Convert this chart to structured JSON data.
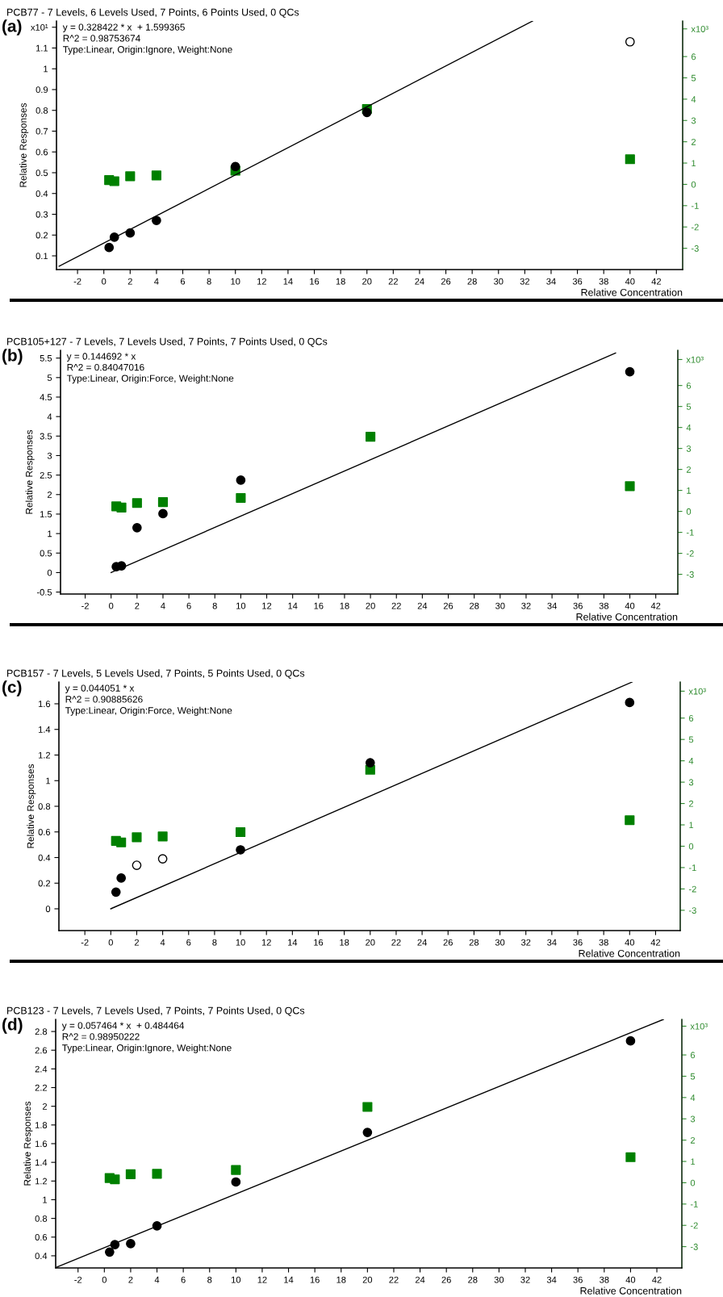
{
  "chart_data": [
    {
      "type": "scatter",
      "title": "PCB77 - 7 Levels, 6 Levels Used, 7 Points, 6 Points Used, 0 QCs",
      "xlabel": "Relative Concentration",
      "ylabel": "Relative Responses",
      "annotations": [
        "(a)",
        "y = 0.328422 * x  + 1.599365",
        "R^2 = 0.98753674",
        "Type:Linear, Origin:Ignore, Weight:None"
      ],
      "x": [
        0.4,
        0.8,
        2,
        4,
        10,
        20,
        40
      ],
      "marker": "circle",
      "grid": false,
      "xlim": [
        -3.6,
        44
      ],
      "xticks": [
        -2,
        0,
        2,
        4,
        6,
        8,
        10,
        12,
        14,
        16,
        18,
        20,
        22,
        24,
        26,
        28,
        30,
        32,
        34,
        36,
        38,
        40,
        42
      ],
      "ylim": [
        0.034,
        1.23
      ],
      "yticks": [
        0.1,
        0.2,
        0.3,
        0.4,
        0.5,
        0.6,
        0.7,
        0.8,
        0.9,
        1,
        1.1,
        {
          "value": 1.2,
          "label": "x10¹"
        }
      ],
      "y2lim": [
        -4.0,
        7.67
      ],
      "y2ticks": [
        -3,
        -2,
        -1,
        0,
        1,
        2,
        3,
        4,
        5,
        6,
        {
          "value": 7.3,
          "label": "x10³"
        }
      ],
      "series": [
        {
          "axis": "y2",
          "marker": "square",
          "color": "#008000",
          "values": [
            0.2,
            0.15,
            0.38,
            0.42,
            0.64,
            3.54,
            1.18
          ]
        },
        {
          "color": "#000000",
          "values": [
            0.14,
            0.19,
            0.21,
            0.27,
            0.53,
            0.79,
            null
          ]
        },
        {
          "color": "#ffffff",
          "values": [
            null,
            null,
            null,
            null,
            null,
            null,
            1.13
          ]
        },
        {
          "type": "line",
          "marker": "none",
          "color": "#000000",
          "x": [
            -3.4,
            32.6
          ],
          "values": [
            0.05,
            1.23
          ]
        }
      ]
    },
    {
      "type": "scatter",
      "title": "PCB105+127 - 7 Levels, 7 Levels Used, 7 Points, 7 Points Used, 0 QCs",
      "xlabel": "Relative Concentration",
      "ylabel": "Relative Responses",
      "annotations": [
        "(b)",
        "y = 0.144692 * x",
        "R^2 = 0.84047016",
        "Type:Linear, Origin:Force, Weight:None"
      ],
      "x": [
        0.4,
        0.8,
        2,
        4,
        10,
        20,
        40
      ],
      "marker": "circle",
      "grid": false,
      "xlim": [
        -3.9,
        43.7
      ],
      "xticks": [
        -2,
        0,
        2,
        4,
        6,
        8,
        10,
        12,
        14,
        16,
        18,
        20,
        22,
        24,
        26,
        28,
        30,
        32,
        34,
        36,
        38,
        40,
        42
      ],
      "ylim": [
        -0.55,
        5.7
      ],
      "yticks": [
        -0.5,
        0,
        0.5,
        1,
        1.5,
        2,
        2.5,
        3,
        3.5,
        4,
        4.5,
        5,
        5.5
      ],
      "y2lim": [
        -3.94,
        7.68
      ],
      "y2ticks": [
        -3,
        -2,
        -1,
        0,
        1,
        2,
        3,
        4,
        5,
        6,
        {
          "value": 7.24,
          "label": "x10³"
        }
      ],
      "series": [
        {
          "axis": "y2",
          "marker": "square",
          "color": "#008000",
          "values": [
            0.24,
            0.18,
            0.4,
            0.44,
            0.64,
            3.56,
            1.2
          ]
        },
        {
          "color": "#000000",
          "values": [
            0.15,
            0.17,
            1.15,
            1.51,
            2.37,
            null,
            5.15
          ]
        },
        {
          "type": "line",
          "marker": "none",
          "color": "#000000",
          "x": [
            0,
            38.9
          ],
          "values": [
            0,
            5.63
          ]
        }
      ]
    },
    {
      "type": "scatter",
      "title": "PCB157 - 7 Levels, 5 Levels Used, 7 Points, 5 Points Used, 0 QCs",
      "xlabel": "Relative Concentration",
      "ylabel": "Relative Responses",
      "annotations": [
        "(c)",
        "y = 0.044051 * x",
        "R^2 = 0.90885626",
        "Type:Linear, Origin:Force, Weight:None"
      ],
      "x": [
        0.4,
        0.8,
        2,
        4,
        10,
        20,
        40
      ],
      "marker": "circle",
      "grid": false,
      "xlim": [
        -4.0,
        43.9
      ],
      "xticks": [
        -2,
        0,
        2,
        4,
        6,
        8,
        10,
        12,
        14,
        16,
        18,
        20,
        22,
        24,
        26,
        28,
        30,
        32,
        34,
        36,
        38,
        40,
        42
      ],
      "ylim": [
        -0.17,
        1.77
      ],
      "yticks": [
        0,
        0.2,
        0.4,
        0.6,
        0.8,
        1,
        1.2,
        1.4,
        1.6
      ],
      "y2lim": [
        -3.95,
        7.69
      ],
      "y2ticks": [
        -3,
        -2,
        -1,
        0,
        1,
        2,
        3,
        4,
        5,
        6,
        {
          "value": 7.26,
          "label": "x10³"
        }
      ],
      "series": [
        {
          "axis": "y2",
          "marker": "square",
          "color": "#008000",
          "values": [
            0.25,
            0.18,
            0.42,
            0.46,
            0.66,
            3.58,
            1.22
          ]
        },
        {
          "color": "#000000",
          "values": [
            0.13,
            0.24,
            null,
            null,
            0.46,
            1.14,
            1.61
          ]
        },
        {
          "color": "#ffffff",
          "values": [
            null,
            null,
            0.34,
            0.39,
            null,
            null,
            null
          ]
        },
        {
          "type": "line",
          "marker": "none",
          "color": "#000000",
          "x": [
            0,
            40.2
          ],
          "values": [
            0,
            1.77
          ]
        }
      ]
    },
    {
      "type": "scatter",
      "title": "PCB123 - 7 Levels, 7 Levels Used, 7 Points, 7 Points Used, 0 QCs",
      "xlabel": "Relative Concentration",
      "ylabel": "Relative Responses",
      "annotations": [
        "(d)",
        "y = 0.057464 * x  + 0.484464",
        "R^2 = 0.98950222",
        "Type:Linear, Origin:Ignore, Weight:None"
      ],
      "x": [
        0.4,
        0.8,
        2,
        4,
        10,
        20,
        40
      ],
      "marker": "circle",
      "grid": false,
      "xlim": [
        -3.7,
        43.9
      ],
      "xticks": [
        -2,
        0,
        2,
        4,
        6,
        8,
        10,
        12,
        14,
        16,
        18,
        20,
        22,
        24,
        26,
        28,
        30,
        32,
        34,
        36,
        38,
        40,
        42
      ],
      "ylim": [
        0.27,
        2.93
      ],
      "yticks": [
        0.4,
        0.6,
        0.8,
        1,
        1.2,
        1.4,
        1.6,
        1.8,
        2,
        2.2,
        2.4,
        2.6,
        2.8
      ],
      "y2lim": [
        -4.0,
        7.67
      ],
      "y2ticks": [
        -3,
        -2,
        -1,
        0,
        1,
        2,
        3,
        4,
        5,
        6,
        {
          "value": 7.35,
          "label": "x10³"
        }
      ],
      "series": [
        {
          "axis": "y2",
          "marker": "square",
          "color": "#008000",
          "values": [
            0.22,
            0.16,
            0.4,
            0.42,
            0.6,
            3.56,
            1.2
          ]
        },
        {
          "color": "#000000",
          "values": [
            0.44,
            0.52,
            0.53,
            0.72,
            1.19,
            1.72,
            2.7
          ]
        },
        {
          "type": "line",
          "marker": "none",
          "color": "#000000",
          "x": [
            -3.6,
            42.5
          ],
          "values": [
            0.28,
            2.93
          ]
        }
      ]
    }
  ]
}
